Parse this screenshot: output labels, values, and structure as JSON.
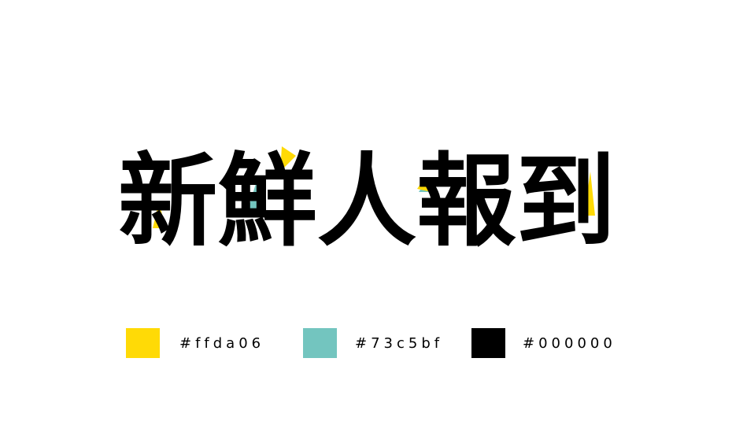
{
  "logo": {
    "text": "新鮮人報到",
    "colors": {
      "yellow": "#ffda06",
      "teal": "#73c5bf",
      "black": "#000000"
    }
  },
  "palette": [
    {
      "color": "#ffda06",
      "label": "#ffda06"
    },
    {
      "color": "#73c5bf",
      "label": "#73c5bf"
    },
    {
      "color": "#000000",
      "label": "#000000"
    }
  ]
}
